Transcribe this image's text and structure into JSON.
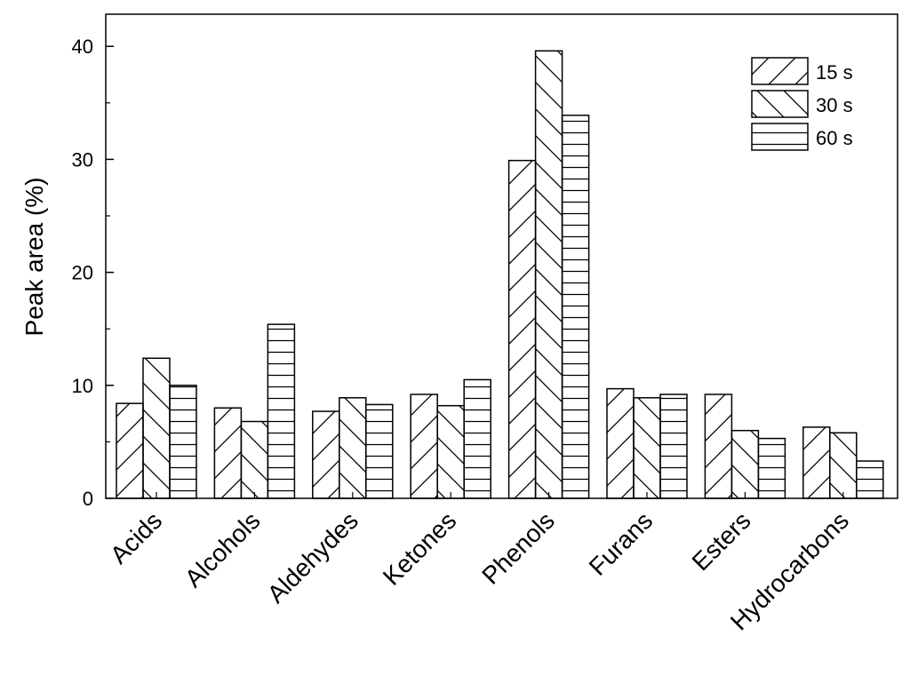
{
  "chart_data": {
    "type": "bar",
    "title": "",
    "xlabel": "",
    "ylabel": "Peak area (%)",
    "ylim": [
      0,
      43
    ],
    "yticks": [
      0,
      10,
      20,
      30,
      40
    ],
    "grid": false,
    "legend_position": "top-right",
    "categories": [
      "Acids",
      "Alcohols",
      "Aldehydes",
      "Ketones",
      "Phenols",
      "Furans",
      "Esters",
      "Hydrocarbons"
    ],
    "series": [
      {
        "name": "15 s",
        "pattern": "diagonal-forward",
        "values": [
          8.4,
          8.0,
          7.7,
          9.2,
          29.9,
          9.7,
          9.2,
          6.3
        ]
      },
      {
        "name": "30 s",
        "pattern": "diagonal-backward",
        "values": [
          12.4,
          6.8,
          8.9,
          8.2,
          39.6,
          8.9,
          6.0,
          5.8
        ]
      },
      {
        "name": "60 s",
        "pattern": "horizontal",
        "values": [
          10.0,
          15.4,
          8.3,
          10.5,
          33.9,
          9.2,
          5.3,
          3.3
        ]
      }
    ],
    "colors": {
      "bar_fill": "#ffffff",
      "stroke": "#000000"
    }
  }
}
